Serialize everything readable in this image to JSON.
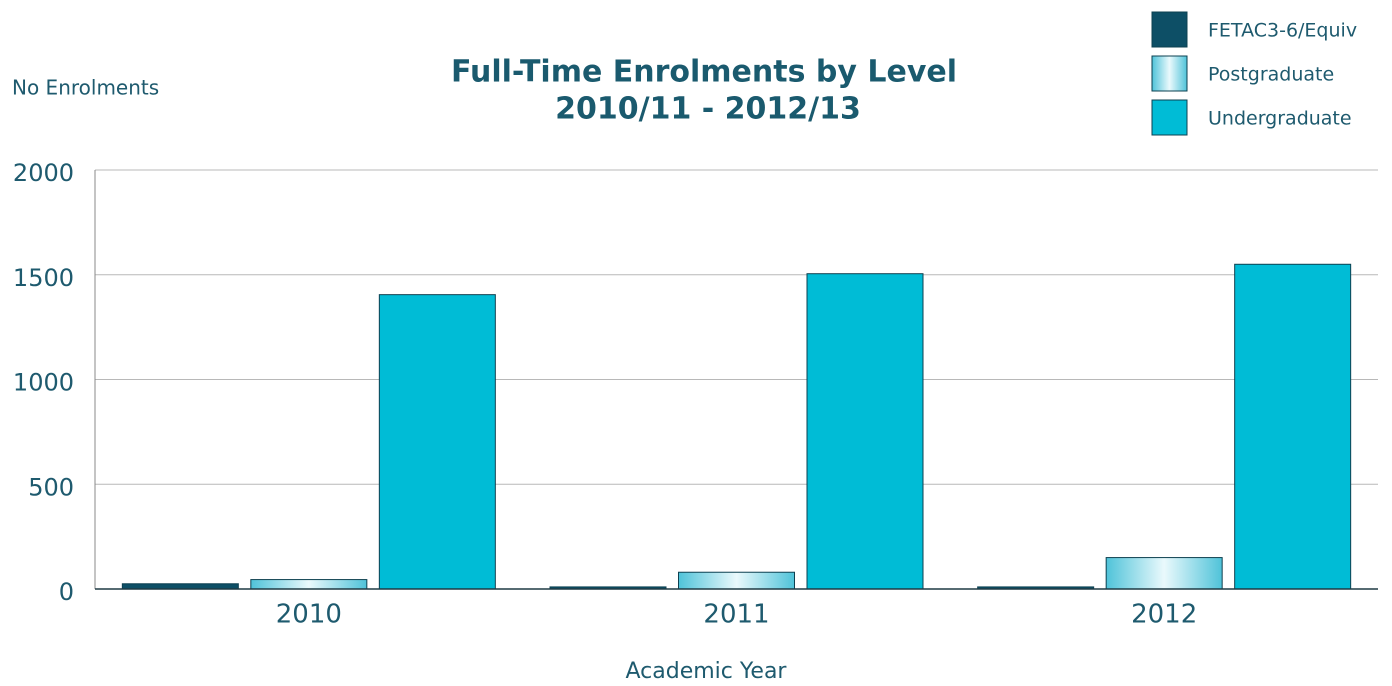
{
  "chart_data": {
    "type": "bar",
    "title": "Full-Time Enrolments by Level",
    "subtitle": "2010/11 - 2012/13",
    "y_label": "No Enrolments",
    "x_label": "Academic Year",
    "categories": [
      "2010",
      "2011",
      "2012"
    ],
    "series": [
      {
        "name": "FETAC3-6/Equiv",
        "color": "#0d4f66",
        "values": [
          25,
          10,
          10
        ]
      },
      {
        "name": "Postgraduate",
        "color": "#4fc3d9",
        "gradient": true,
        "values": [
          45,
          80,
          150
        ]
      },
      {
        "name": "Undergraduate",
        "color": "#00bcd6",
        "values": [
          1405,
          1505,
          1550
        ]
      }
    ],
    "ylim": [
      0,
      2000
    ],
    "yticks": [
      0,
      500,
      1000,
      1500,
      2000
    ],
    "grid": true,
    "legend": "top-right"
  }
}
